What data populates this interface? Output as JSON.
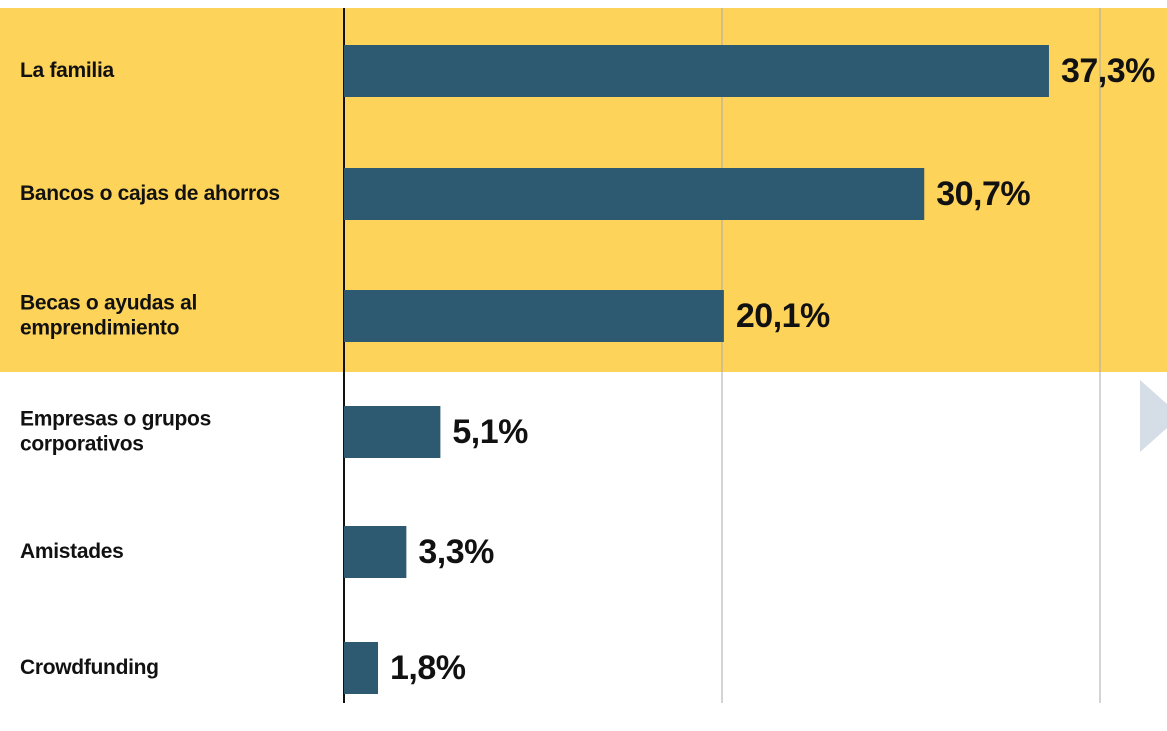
{
  "chart_data": {
    "type": "bar",
    "orientation": "horizontal",
    "categories": [
      "La familia",
      "Bancos o cajas de ahorros",
      "Becas o ayudas al\nemprendimiento",
      "Empresas o grupos\ncorporativos",
      "Amistades",
      "Crowdfunding"
    ],
    "values": [
      37.3,
      30.7,
      20.1,
      5.1,
      3.3,
      1.8
    ],
    "value_labels": [
      "37,3%",
      "30,7%",
      "20,1%",
      "5,1%",
      "3,3%",
      "1,8%"
    ],
    "color": "#2d5a70",
    "xlim": [
      0,
      40
    ],
    "xticks": [
      0,
      20,
      40
    ],
    "grid": true
  }
}
